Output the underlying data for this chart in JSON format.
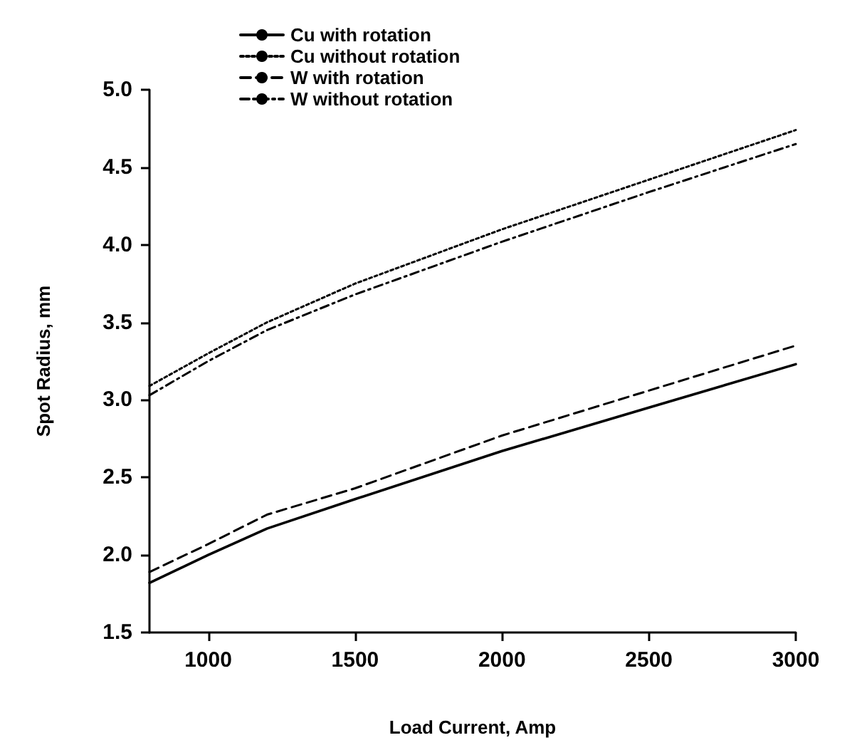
{
  "chart_data": {
    "type": "line",
    "xlabel": "Load Current, Amp",
    "ylabel": "Spot Radius, mm",
    "x": [
      800,
      1000,
      1200,
      1500,
      2000,
      2500,
      3000
    ],
    "series": [
      {
        "name": "Cu with rotation",
        "color": "#000000",
        "line_style": "solid",
        "values": [
          1.82,
          2.0,
          2.17,
          2.36,
          2.67,
          2.95,
          3.23
        ]
      },
      {
        "name": "Cu without rotation",
        "color": "#000000",
        "line_style": "dotted",
        "values": [
          3.09,
          3.3,
          3.5,
          3.75,
          4.1,
          4.42,
          4.74
        ]
      },
      {
        "name": "W with rotation",
        "color": "#000000",
        "line_style": "dashed",
        "values": [
          1.89,
          2.07,
          2.26,
          2.43,
          2.77,
          3.06,
          3.35
        ]
      },
      {
        "name": "W without rotation",
        "color": "#000000",
        "line_style": "dashdot",
        "values": [
          3.03,
          3.25,
          3.45,
          3.68,
          4.02,
          4.34,
          4.65
        ]
      }
    ],
    "xlim": [
      800,
      3000
    ],
    "xticks": [
      1000,
      1500,
      2000,
      2500,
      3000
    ],
    "ylim": [
      1.5,
      5.0
    ],
    "yticks": [
      1.5,
      {
        "value": 2,
        "label": "2.0"
      },
      2.5,
      {
        "value": 3,
        "label": "3.0"
      },
      3.5,
      {
        "value": 4,
        "label": "4.0"
      },
      4.5,
      {
        "value": 5,
        "label": "5.0"
      }
    ],
    "legend": "top",
    "marker": "none",
    "grid": false
  }
}
